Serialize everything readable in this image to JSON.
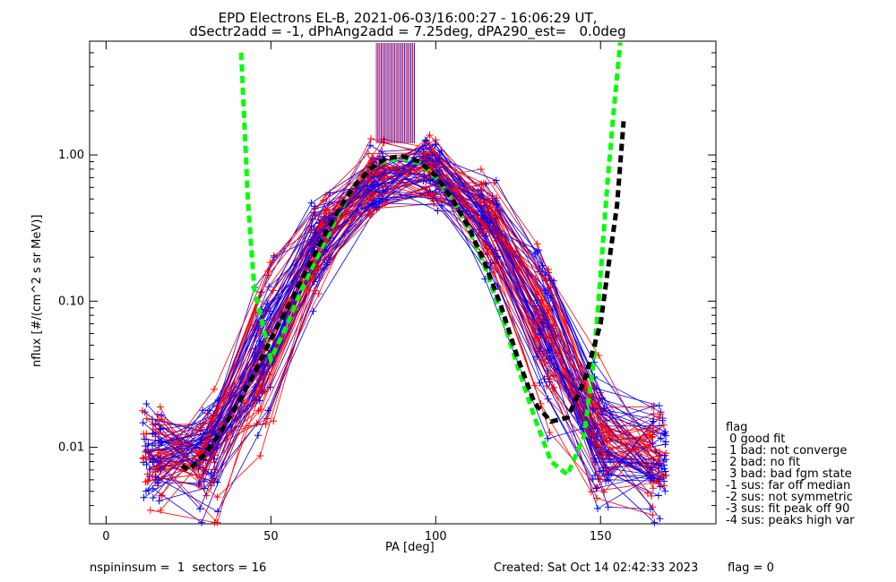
{
  "header": {
    "title_line1": "EPD Electrons EL-B, 2021-06-03/16:00:27 - 16:06:29 UT,",
    "title_line2": "dSectr2add = -1, dPhAng2add = 7.25deg, dPA290_est=   0.0deg"
  },
  "footer": {
    "spin_info": "nspininsum =  1  sectors = 16",
    "created": "Created: Sat Oct 14 02:42:33 2023",
    "flag": "flag = 0"
  },
  "legend": {
    "title": "flag",
    "items": [
      " 0 good fit",
      " 1 bad: not converge",
      " 2 bad: no fit",
      " 3 bad: bad fgm state",
      "-1 sus: far off median",
      "-2 sus: not symmetric",
      "-3 sus: fit peak off 90",
      "-4 sus: peaks high var"
    ]
  },
  "colors": {
    "spin_a": "#ff0000",
    "spin_b": "#0000ff",
    "fit_green": "#00ff00",
    "fit_black": "#000000"
  },
  "chart_data": {
    "type": "line",
    "title": "EPD Electrons EL-B, 2021-06-03/16:00:27 - 16:06:29 UT,",
    "subtitle": "dSectr2add = -1, dPhAng2add = 7.25deg, dPA290_est=   0.0deg",
    "xlabel": "PA [deg]",
    "ylabel": "nflux [#/(cm^2 s sr MeV)]",
    "xlim": [
      -5,
      185
    ],
    "ylim": [
      0.003,
      6.0
    ],
    "yscale": "log",
    "x_ticks": [
      0,
      50,
      100,
      150
    ],
    "x_tick_labels": [
      "0",
      "50",
      "100",
      "150"
    ],
    "y_ticks": [
      0.01,
      0.1,
      1.0
    ],
    "y_tick_labels": [
      "0.01",
      "0.10",
      "1.00"
    ],
    "grid": false,
    "legend_position": "outside-right-bottom",
    "series": [
      {
        "color": "#00ff00",
        "style": "dashed-thick",
        "x": [
          41,
          43,
          45,
          50,
          55,
          60,
          65,
          70,
          75,
          80,
          85,
          90,
          95,
          100,
          105,
          110,
          115,
          120,
          125,
          130,
          135,
          140,
          145,
          148,
          150,
          152,
          154,
          156
        ],
        "y": [
          5.0,
          0.5,
          0.12,
          0.04,
          0.07,
          0.13,
          0.22,
          0.38,
          0.6,
          0.8,
          0.92,
          0.95,
          0.88,
          0.7,
          0.5,
          0.31,
          0.17,
          0.08,
          0.035,
          0.016,
          0.008,
          0.0065,
          0.012,
          0.04,
          0.15,
          0.6,
          2.0,
          6.0
        ]
      },
      {
        "color": "#000000",
        "style": "dashed-thick",
        "x": [
          23,
          25,
          30,
          35,
          40,
          45,
          50,
          55,
          60,
          65,
          70,
          75,
          80,
          85,
          90,
          95,
          100,
          105,
          110,
          115,
          120,
          125,
          130,
          135,
          140,
          142,
          145,
          150,
          152,
          155,
          157
        ],
        "y": [
          0.0075,
          0.007,
          0.009,
          0.013,
          0.02,
          0.032,
          0.055,
          0.09,
          0.15,
          0.25,
          0.4,
          0.6,
          0.8,
          0.95,
          0.98,
          0.9,
          0.72,
          0.5,
          0.32,
          0.18,
          0.09,
          0.04,
          0.02,
          0.015,
          0.016,
          0.02,
          0.028,
          0.07,
          0.15,
          0.45,
          1.7
        ]
      }
    ]
  }
}
